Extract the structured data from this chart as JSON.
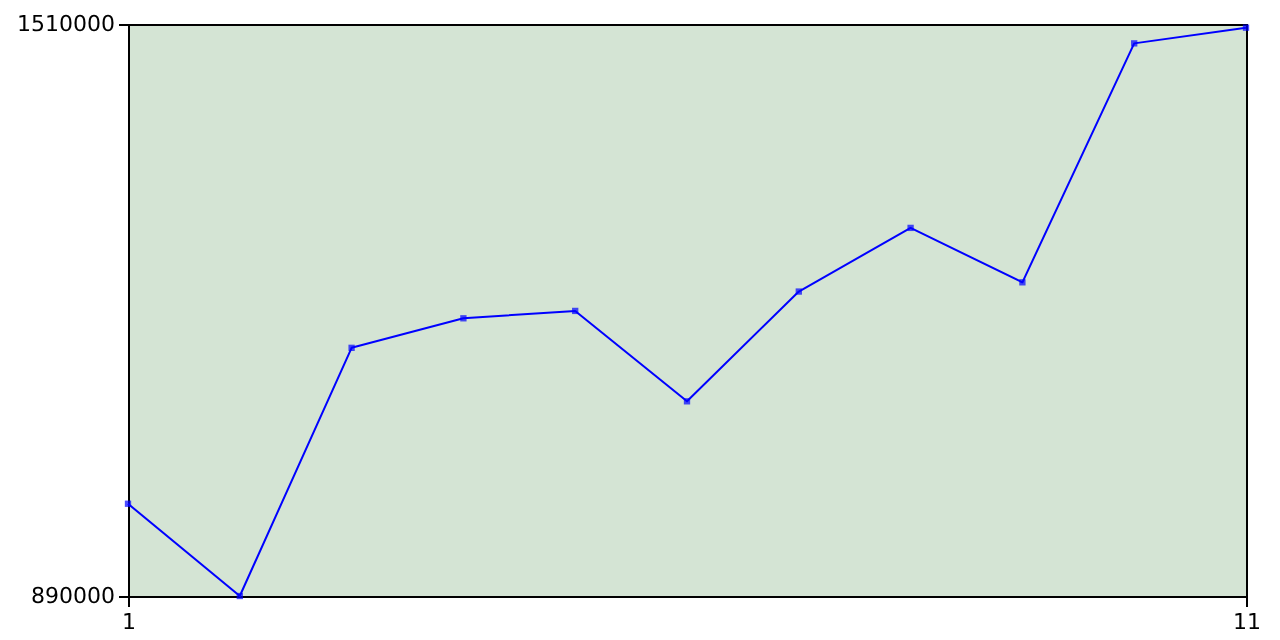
{
  "chart_data": {
    "type": "line",
    "x": [
      1,
      2,
      3,
      4,
      5,
      6,
      7,
      8,
      9,
      10,
      11
    ],
    "series": [
      {
        "color": "#0000ff",
        "values": [
          990000,
          890000,
          1159000,
          1191000,
          1199000,
          1101000,
          1220000,
          1289000,
          1230000,
          1489000,
          1506000
        ]
      }
    ],
    "xlim": [
      1,
      11
    ],
    "xticks": [
      1,
      11
    ],
    "ylim": [
      890000,
      1510000
    ],
    "yticks": [
      890000,
      1510000
    ],
    "legend": false,
    "marker": "square",
    "line_style": "solid"
  }
}
